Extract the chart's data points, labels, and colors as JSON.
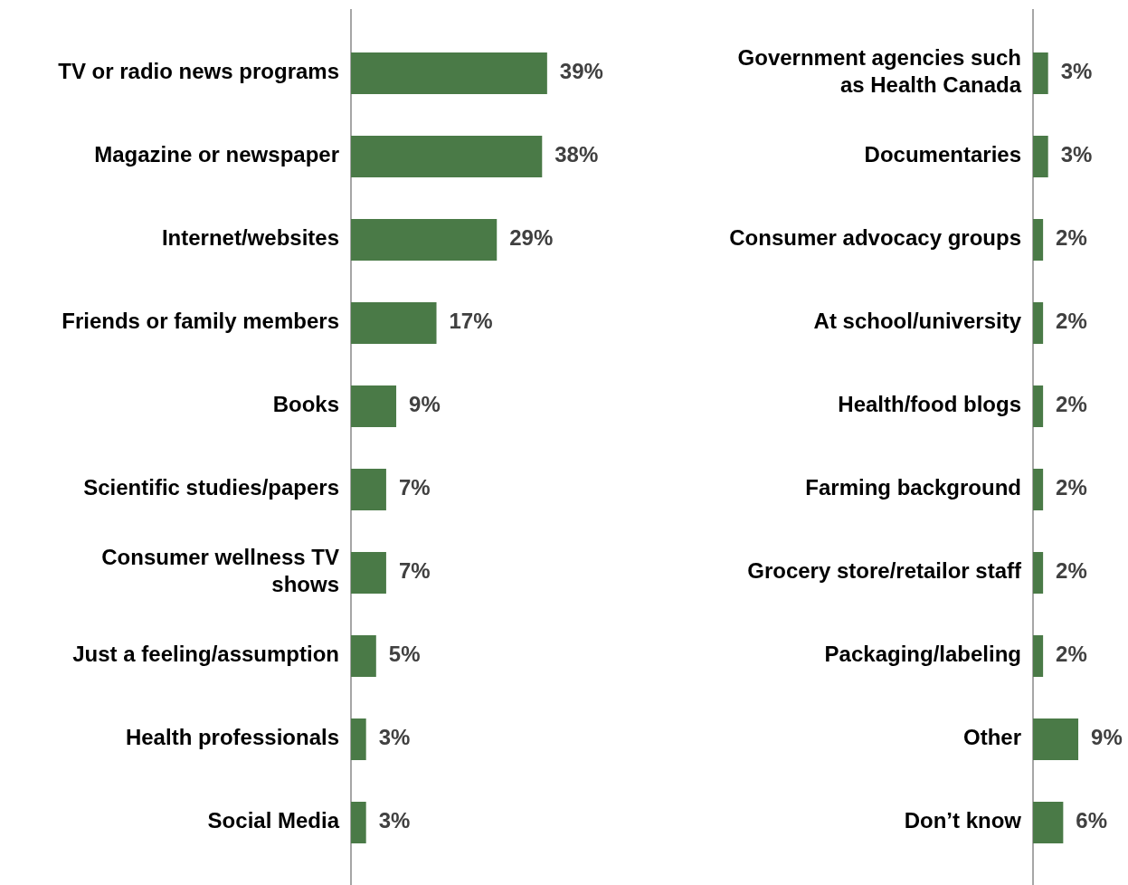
{
  "chart_data": [
    {
      "type": "bar",
      "orientation": "horizontal",
      "categories": [
        "TV or radio news programs",
        "Magazine or newspaper",
        "Internet/websites",
        "Friends or family members",
        "Books",
        "Scientific studies/papers",
        "Consumer wellness TV shows",
        "Just a feeling/assumption",
        "Health professionals",
        "Social Media"
      ],
      "values": [
        39,
        38,
        29,
        17,
        9,
        7,
        7,
        5,
        3,
        3
      ],
      "value_labels": [
        "39%",
        "38%",
        "29%",
        "17%",
        "9%",
        "7%",
        "7%",
        "5%",
        "3%",
        "3%"
      ],
      "color": "#4a7a47",
      "tick_labels": "y"
    },
    {
      "type": "bar",
      "orientation": "horizontal",
      "categories": [
        "Government agencies such as Health Canada",
        "Documentaries",
        "Consumer advocacy groups",
        "At school/university",
        "Health/food blogs",
        "Farming background",
        "Grocery store/retailor staff",
        "Packaging/labeling",
        "Other",
        "Don’t know"
      ],
      "values": [
        3,
        3,
        2,
        2,
        2,
        2,
        2,
        2,
        9,
        6
      ],
      "value_labels": [
        "3%",
        "3%",
        "2%",
        "2%",
        "2%",
        "2%",
        "2%",
        "2%",
        "9%",
        "6%"
      ],
      "color": "#4a7a47",
      "tick_labels": "y"
    }
  ]
}
